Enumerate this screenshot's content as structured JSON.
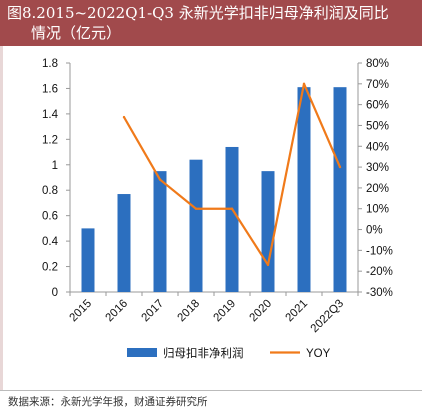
{
  "figure": {
    "title_line1": "图8.2015~2022Q1-Q3  永新光学扣非归母净利润及同比",
    "title_line2": "情况（亿元）",
    "source": "数据来源：永新光学年报，财通证券研究所"
  },
  "colors": {
    "banner": "#a14a4c",
    "bar": "#2c6fbf",
    "line": "#f07a1a"
  },
  "chart_data": {
    "type": "bar",
    "categories": [
      "2015",
      "2016",
      "2017",
      "2018",
      "2019",
      "2020",
      "2021",
      "2022Q3"
    ],
    "series": [
      {
        "name": "归母扣非净利润",
        "type": "bar",
        "axis": "left",
        "values": [
          0.5,
          0.77,
          0.95,
          1.04,
          1.14,
          0.95,
          1.61,
          1.61
        ]
      },
      {
        "name": "YOY",
        "type": "line",
        "axis": "right",
        "values": [
          null,
          54,
          24,
          10,
          10,
          -17,
          70,
          30
        ]
      }
    ],
    "y_left": {
      "min": 0,
      "max": 1.8,
      "ticks": [
        "0",
        "0.2",
        "0.4",
        "0.6",
        "0.8",
        "1",
        "1.2",
        "1.4",
        "1.6",
        "1.8"
      ]
    },
    "y_right": {
      "min": -30,
      "max": 80,
      "ticks": [
        "-30%",
        "-20%",
        "-10%",
        "0%",
        "10%",
        "20%",
        "30%",
        "40%",
        "50%",
        "60%",
        "70%",
        "80%"
      ]
    },
    "legend_position": "bottom",
    "grid": false
  }
}
